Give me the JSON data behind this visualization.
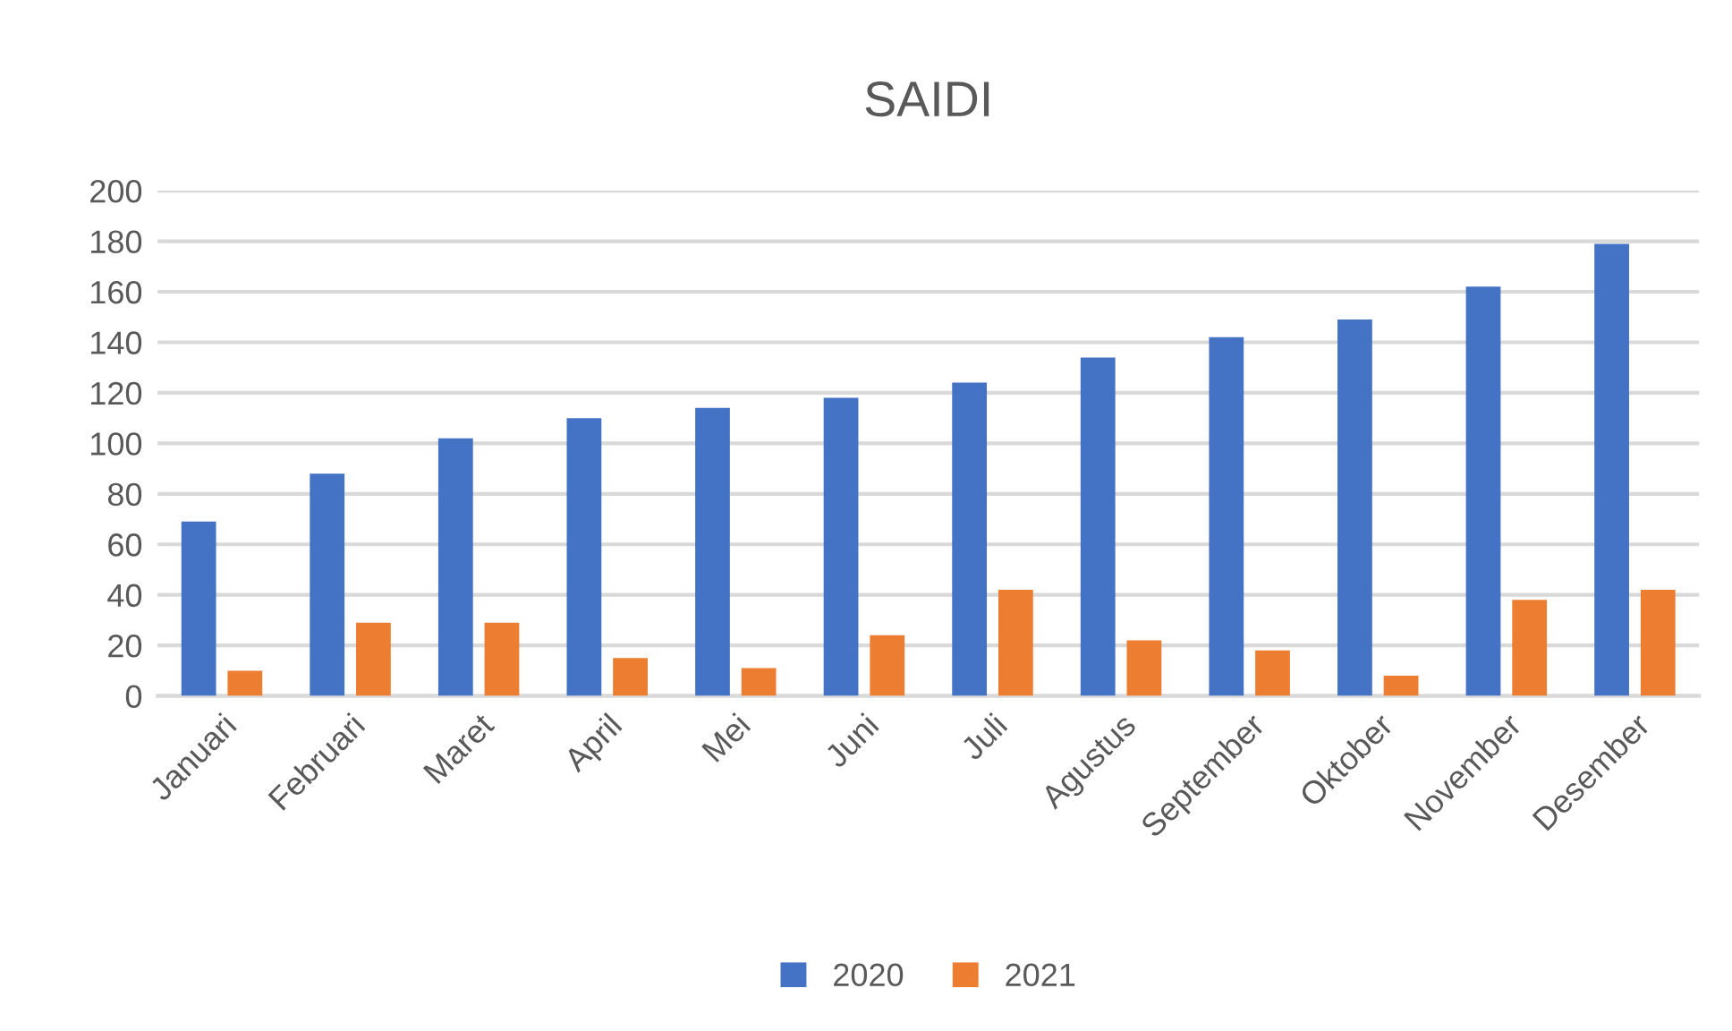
{
  "chart_data": {
    "type": "bar",
    "title": "SAIDI",
    "categories": [
      "Januari",
      "Februari",
      "Maret",
      "April",
      "Mei",
      "Juni",
      "Juli",
      "Agustus",
      "September",
      "Oktober",
      "November",
      "Desember"
    ],
    "series": [
      {
        "name": "2020",
        "color": "#4472c4",
        "values": [
          69,
          88,
          102,
          110,
          114,
          118,
          124,
          134,
          142,
          149,
          162,
          179
        ]
      },
      {
        "name": "2021",
        "color": "#ed7d31",
        "values": [
          10,
          29,
          29,
          15,
          11,
          24,
          42,
          22,
          18,
          8,
          38,
          42
        ]
      }
    ],
    "ylim": [
      0,
      200
    ],
    "yticks": [
      0,
      20,
      40,
      60,
      80,
      100,
      120,
      140,
      160,
      180,
      200
    ],
    "grid": "y",
    "legend": "bottom"
  }
}
